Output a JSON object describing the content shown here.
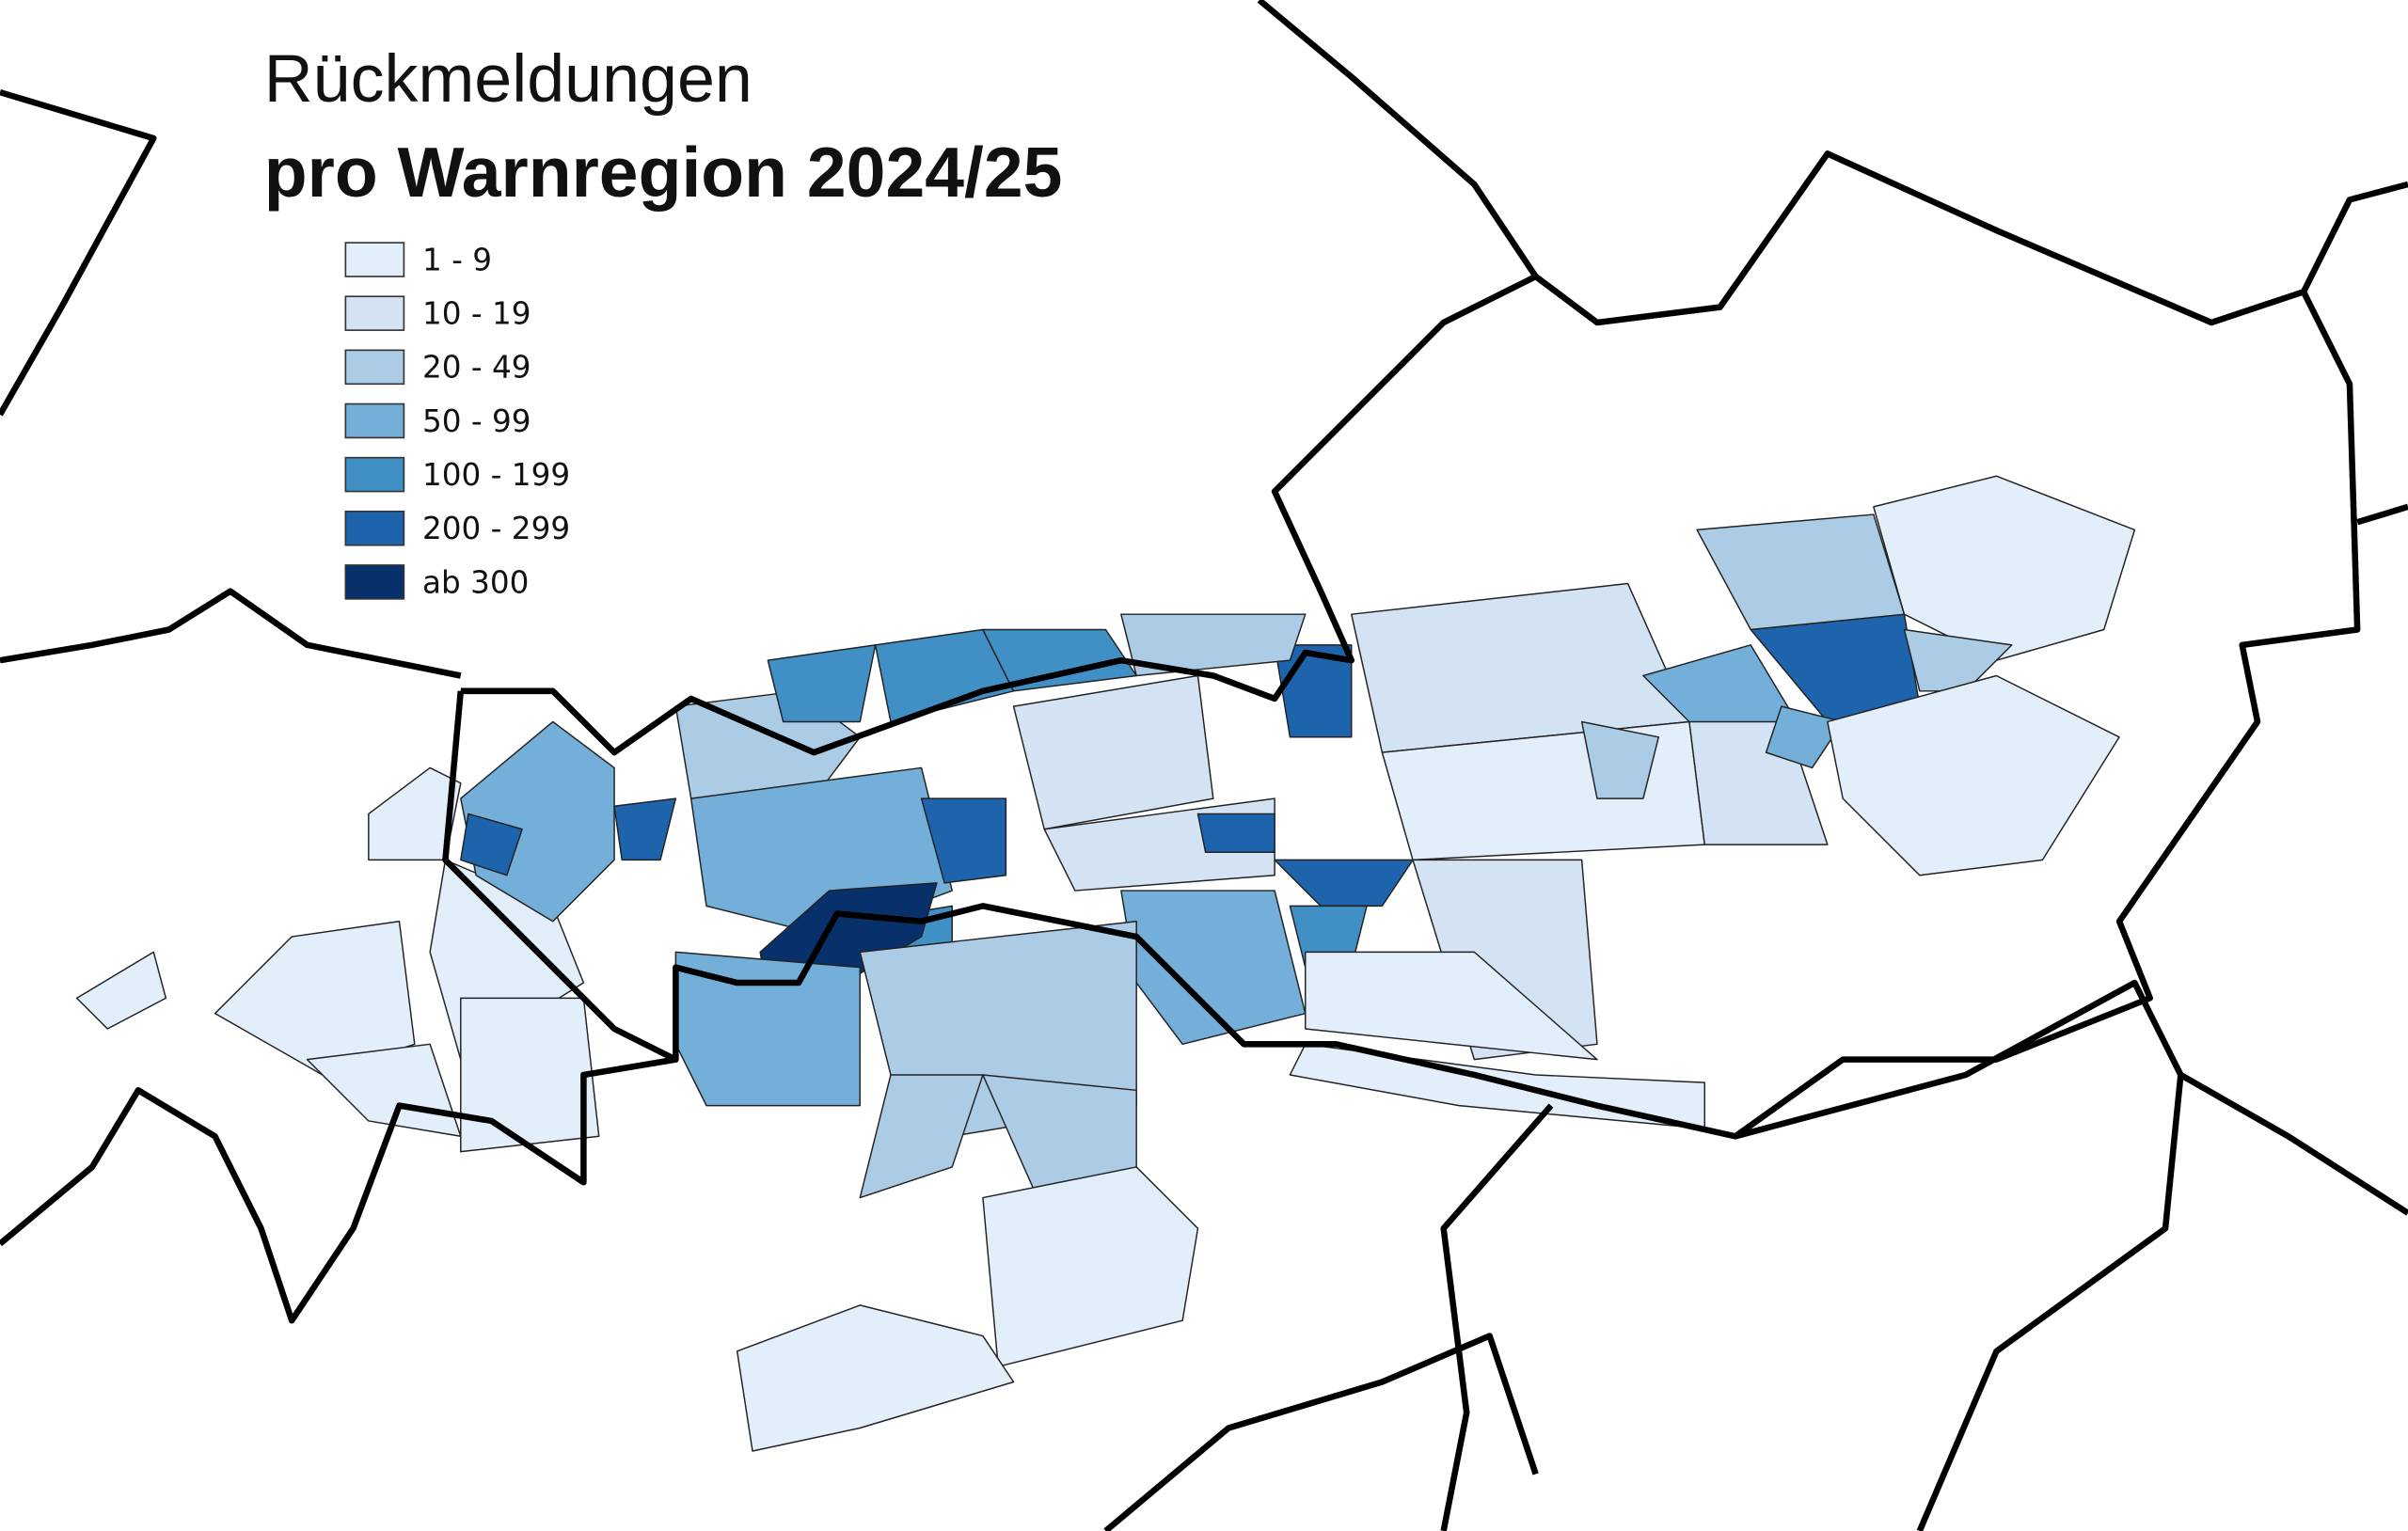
{
  "title": {
    "line1": "Rückmeldungen",
    "line2": "pro Warnregion 2024/25"
  },
  "legend": {
    "items": [
      {
        "label": "1 - 9",
        "color": "#e2eefa"
      },
      {
        "label": "10 - 19",
        "color": "#d3e3f3"
      },
      {
        "label": "20 - 49",
        "color": "#acccE6"
      },
      {
        "label": "50 - 99",
        "color": "#73afd8"
      },
      {
        "label": "100 - 199",
        "color": "#4090c6"
      },
      {
        "label": "200 - 299",
        "color": "#1e64ac"
      },
      {
        "label": "ab 300",
        "color": "#08306b"
      }
    ]
  }
}
